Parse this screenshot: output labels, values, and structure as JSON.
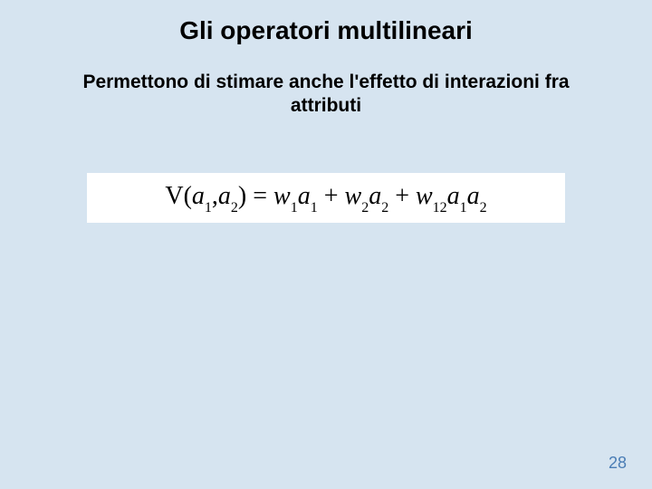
{
  "slide": {
    "background_color": "#d6e4f0",
    "title": {
      "text": "Gli operatori multilineari",
      "fontsize": 28,
      "color": "#000000",
      "weight": "bold"
    },
    "subtitle": {
      "line1": "Permettono di stimare anche l'effetto di interazioni fra",
      "line2": "attributi",
      "fontsize": 21,
      "color": "#000000",
      "weight": "bold"
    },
    "formula": {
      "box_bg": "#ffffff",
      "fontsize": 28,
      "color": "#000000",
      "V": "V",
      "lp": "(",
      "a": "a",
      "s1": "1",
      "comma": ",",
      "s2": "2",
      "rp": ")",
      "eq": " = ",
      "w": "w",
      "plus": " + ",
      "s12": "12"
    },
    "page_number": {
      "text": "28",
      "color": "#4a7db5",
      "fontsize": 18
    }
  }
}
